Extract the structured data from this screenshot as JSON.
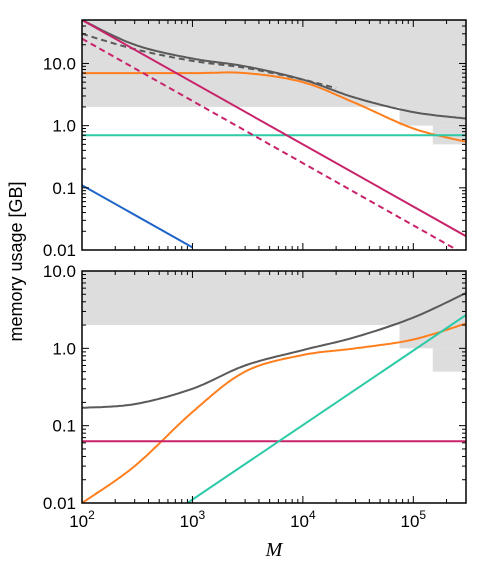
{
  "chart_data": [
    {
      "type": "line",
      "panel": "top",
      "xscale": "log",
      "yscale": "log",
      "xlim": [
        100,
        300000
      ],
      "ylim": [
        0.01,
        50
      ],
      "ytick_labels": [
        "0.01",
        "0.1",
        "1.0",
        "10.0"
      ],
      "yticks": [
        0.01,
        0.1,
        1,
        10
      ],
      "shaded_regions": [
        {
          "x": [
            100,
            300000
          ],
          "y": [
            2,
            50
          ],
          "color": "#dddddd"
        },
        {
          "x": [
            75000,
            300000
          ],
          "y": [
            1,
            2
          ],
          "color": "#dddddd"
        },
        {
          "x": [
            150000,
            300000
          ],
          "y": [
            0.5,
            1
          ],
          "color": "#dddddd"
        }
      ],
      "series": [
        {
          "color": "#5a5a5a",
          "style": "solid",
          "x": [
            100,
            300,
            1000,
            3000,
            10000,
            30000,
            100000,
            300000
          ],
          "y": [
            50,
            20,
            12,
            9,
            5.5,
            2.8,
            1.65,
            1.3
          ]
        },
        {
          "color": "#5a5a5a",
          "style": "dashed",
          "x": [
            100,
            300,
            1000,
            3000,
            10000,
            20000
          ],
          "y": [
            30,
            17,
            11,
            8.5,
            5.5,
            4
          ]
        },
        {
          "color": "#ff7f1e",
          "style": "solid",
          "x": [
            100,
            1000,
            3000,
            10000,
            30000,
            100000,
            300000
          ],
          "y": [
            7,
            7,
            7,
            5,
            2.3,
            0.9,
            0.55
          ]
        },
        {
          "color": "#2dcaa8",
          "style": "solid",
          "x": [
            100,
            300000
          ],
          "y": [
            0.7,
            0.7
          ]
        },
        {
          "color": "#c8236a",
          "style": "solid",
          "x": [
            100,
            300000
          ],
          "y": [
            50,
            0.0167
          ]
        },
        {
          "color": "#c8236a",
          "style": "dashed",
          "x": [
            100,
            300000
          ],
          "y": [
            25,
            0.0083
          ]
        },
        {
          "color": "#1f64c8",
          "style": "solid",
          "x": [
            100,
            1000
          ],
          "y": [
            0.11,
            0.011
          ]
        }
      ]
    },
    {
      "type": "line",
      "panel": "bottom",
      "xscale": "log",
      "yscale": "log",
      "xlim": [
        100,
        300000
      ],
      "ylim": [
        0.01,
        10
      ],
      "ytick_labels": [
        "0.01",
        "0.1",
        "1.0",
        "10.0"
      ],
      "yticks": [
        0.01,
        0.1,
        1,
        10
      ],
      "xtick_labels": [
        "10^2",
        "10^3",
        "10^4",
        "10^5"
      ],
      "xticks": [
        100,
        1000,
        10000,
        100000
      ],
      "shaded_regions": [
        {
          "x": [
            100,
            300000
          ],
          "y": [
            2,
            10
          ],
          "color": "#dddddd"
        },
        {
          "x": [
            75000,
            300000
          ],
          "y": [
            1,
            2
          ],
          "color": "#dddddd"
        },
        {
          "x": [
            150000,
            300000
          ],
          "y": [
            0.5,
            1
          ],
          "color": "#dddddd"
        }
      ],
      "series": [
        {
          "color": "#5a5a5a",
          "style": "solid",
          "x": [
            100,
            300,
            1000,
            3000,
            10000,
            30000,
            100000,
            300000
          ],
          "y": [
            0.17,
            0.19,
            0.3,
            0.6,
            0.95,
            1.4,
            2.5,
            5.2
          ]
        },
        {
          "color": "#ff7f1e",
          "style": "solid",
          "x": [
            100,
            300,
            1000,
            3000,
            10000,
            30000,
            100000,
            300000
          ],
          "y": [
            0.01,
            0.03,
            0.15,
            0.5,
            0.82,
            1.0,
            1.3,
            2.1
          ]
        },
        {
          "color": "#c8236a",
          "style": "solid",
          "x": [
            100,
            300000
          ],
          "y": [
            0.063,
            0.063
          ]
        },
        {
          "color": "#2dcaa8",
          "style": "solid",
          "x": [
            900,
            300000
          ],
          "y": [
            0.01,
            2.7
          ]
        }
      ]
    }
  ],
  "ylabel": "memory usage [GB]",
  "xlabel": "M"
}
